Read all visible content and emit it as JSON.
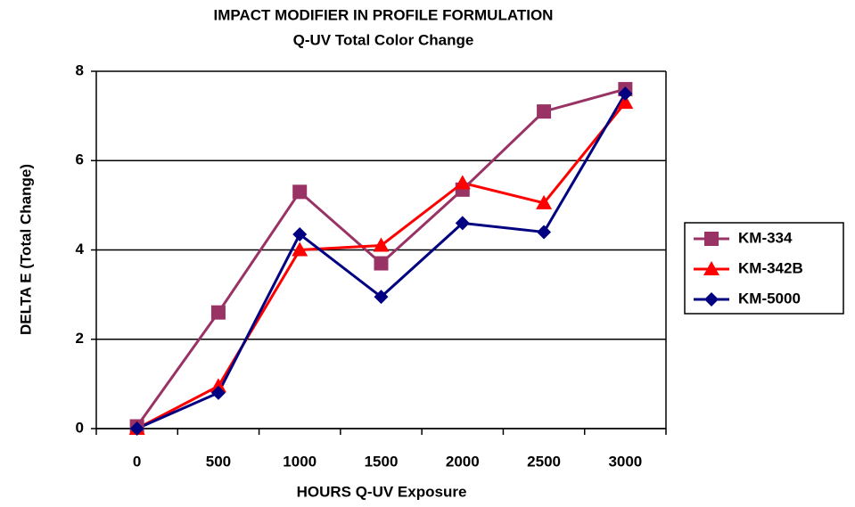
{
  "chart_data": {
    "type": "line",
    "title": "IMPACT MODIFIER IN PROFILE FORMULATION",
    "subtitle": "Q-UV Total Color Change",
    "x_label": "HOURS Q-UV Exposure",
    "y_label": "DELTA E (Total Change)",
    "categories": [
      "0",
      "500",
      "1000",
      "1500",
      "2000",
      "2500",
      "3000"
    ],
    "series": [
      {
        "name": "KM-334",
        "color": "#993366",
        "marker": "square",
        "values": [
          0.05,
          2.6,
          5.3,
          3.7,
          5.35,
          7.1,
          7.6
        ]
      },
      {
        "name": "KM-342B",
        "color": "#ff0000",
        "marker": "triangle",
        "values": [
          0,
          0.95,
          4.0,
          4.1,
          5.5,
          5.05,
          7.3
        ]
      },
      {
        "name": "KM-5000",
        "color": "#000080",
        "marker": "diamond",
        "values": [
          0,
          0.8,
          4.35,
          2.95,
          4.6,
          4.4,
          7.5
        ]
      }
    ],
    "ylim": [
      0,
      8
    ],
    "yticks": [
      0,
      2,
      4,
      6,
      8
    ],
    "grid": true,
    "legend": "right"
  }
}
